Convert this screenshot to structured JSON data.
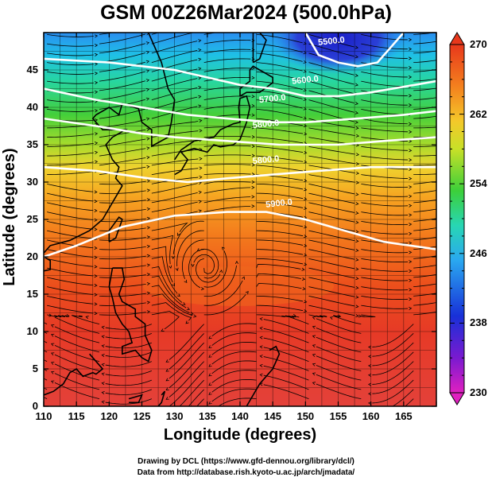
{
  "title": "GSM 00Z26Mar2024 (500.0hPa)",
  "x_axis_label": "Longitude (degrees)",
  "y_axis_label": "Latitude  (degrees)",
  "x_ticks": [
    "110",
    "115",
    "120",
    "125",
    "130",
    "135",
    "140",
    "145",
    "150",
    "155",
    "160",
    "165"
  ],
  "y_ticks": [
    "0",
    "5",
    "10",
    "15",
    "20",
    "25",
    "30",
    "35",
    "40",
    "45"
  ],
  "colorbar_ticks": [
    "230",
    "238",
    "246",
    "254",
    "262",
    "270"
  ],
  "contour_labels": [
    "5500.0",
    "5600.0",
    "5700.0",
    "5800.0",
    "5800.0",
    "5900.0"
  ],
  "credits": {
    "line1": "Drawing by DCL (https://www.gfd-dennou.org/library/dcl/)",
    "line2": "Data from http://database.rish.kyoto-u.ac.jp/arch/jmadata/"
  },
  "map": {
    "lon_range": [
      110,
      170
    ],
    "lat_range": [
      0,
      50
    ],
    "colorbar_range": [
      230,
      270
    ],
    "colormap": "rainbow (magenta-blue-cyan-green-yellow-orange-red)",
    "field_colors": [
      "#2b3fd6",
      "#1fa8f0",
      "#27d6a0",
      "#3fd03a",
      "#b8e030",
      "#f2d630",
      "#f5a020",
      "#f26a18",
      "#e83a1c",
      "#e33a30"
    ]
  }
}
